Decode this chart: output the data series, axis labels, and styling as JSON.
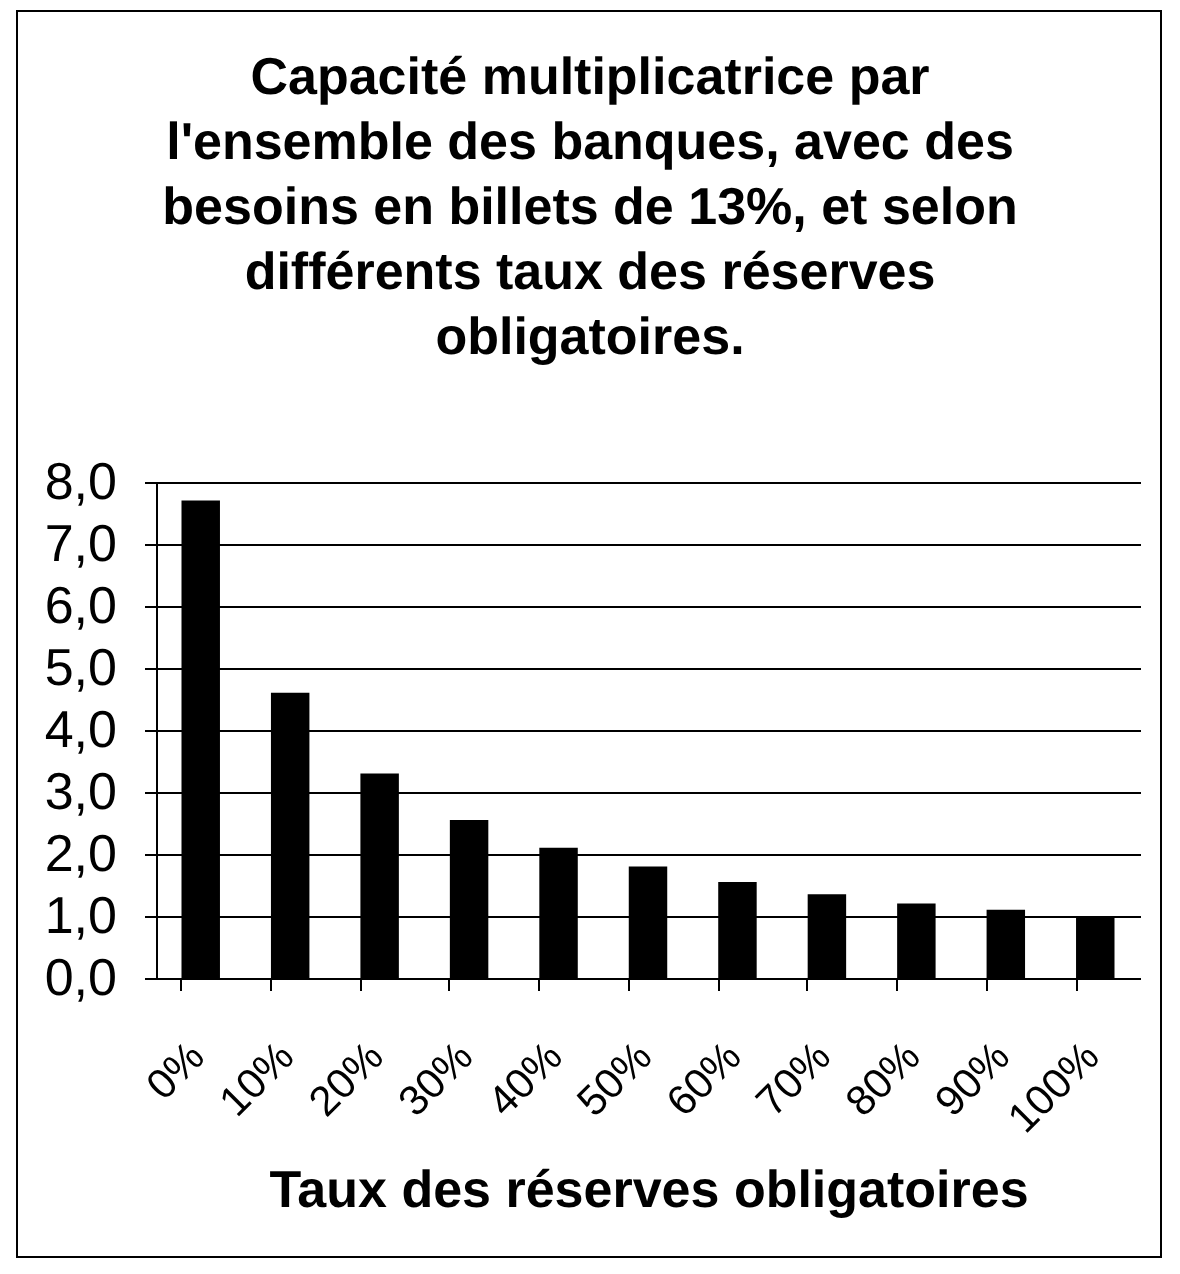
{
  "chart_data": {
    "type": "bar",
    "title": "Capacité multiplicatrice par\nl'ensemble des banques, avec des\nbesoins en billets de 13%, et selon\ndifférents taux des réserves\nobligatoires.",
    "xlabel": "Taux des réserves obligatoires",
    "categories": [
      "0%",
      "10%",
      "20%",
      "30%",
      "40%",
      "50%",
      "60%",
      "70%",
      "80%",
      "90%",
      "100%"
    ],
    "values": [
      7.7,
      4.6,
      3.3,
      2.55,
      2.1,
      1.8,
      1.55,
      1.35,
      1.2,
      1.1,
      1.0
    ],
    "color": "#000000",
    "ylim": [
      0,
      8
    ],
    "yticks": [
      {
        "value": 0,
        "label": "0,0"
      },
      {
        "value": 1,
        "label": "1,0"
      },
      {
        "value": 2,
        "label": "2,0"
      },
      {
        "value": 3,
        "label": "3,0"
      },
      {
        "value": 4,
        "label": "4,0"
      },
      {
        "value": 5,
        "label": "5,0"
      },
      {
        "value": 6,
        "label": "6,0"
      },
      {
        "value": 7,
        "label": "7,0"
      },
      {
        "value": 8,
        "label": "8,0"
      }
    ],
    "grid": "y"
  }
}
